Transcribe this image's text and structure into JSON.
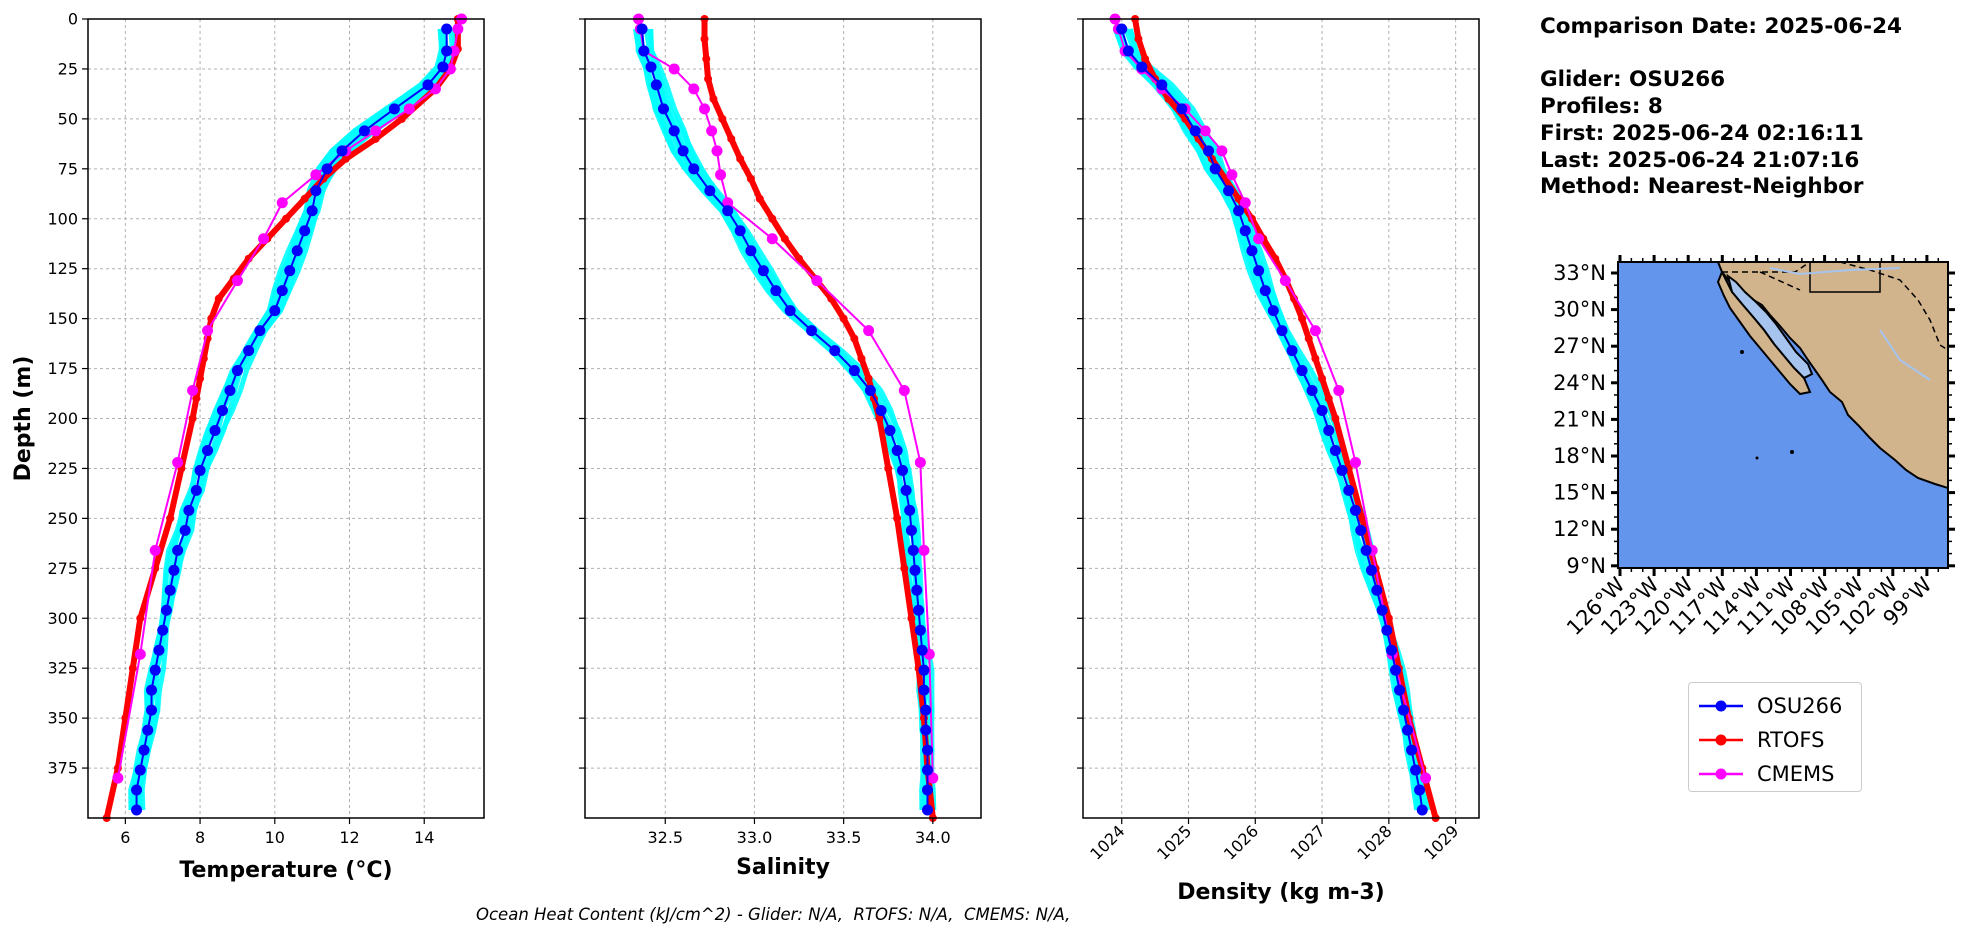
{
  "info": {
    "comparison_date": "Comparison Date: 2025-06-24",
    "glider": "Glider: OSU266",
    "profiles": "Profiles: 8",
    "first": "First: 2025-06-24 02:16:11",
    "last": "Last: 2025-06-24 21:07:16",
    "method": "Method: Nearest-Neighbor"
  },
  "footer": "Ocean Heat Content (kJ/cm^2) - Glider: N/A,  RTOFS: N/A,  CMEMS: N/A,",
  "legend": [
    {
      "name": "OSU266",
      "color": "#0000ff"
    },
    {
      "name": "RTOFS",
      "color": "#ff0000"
    },
    {
      "name": "CMEMS",
      "color": "#ff00ff"
    }
  ],
  "colors": {
    "glider_profiles": "#00ffff",
    "land": "#d2b48c",
    "ocean": "#6495ed",
    "water_bodies": "#a6c4ee"
  },
  "chart_data": [
    {
      "type": "line",
      "panel": "temperature",
      "xlabel": "Temperature (°C)",
      "ylabel": "Depth (m)",
      "xlim": [
        5.0,
        15.6
      ],
      "ylim": [
        400,
        0
      ],
      "y_inverted": true,
      "xticks": [
        "6",
        "8",
        "10",
        "12",
        "14"
      ],
      "yticks": [
        "0",
        "25",
        "50",
        "75",
        "100",
        "125",
        "150",
        "175",
        "200",
        "225",
        "250",
        "275",
        "300",
        "325",
        "350",
        "375"
      ],
      "grid": true,
      "series": [
        {
          "name": "OSU266",
          "depth": [
            5,
            16,
            24,
            33,
            45,
            56,
            66,
            75,
            86,
            96,
            106,
            116,
            126,
            136,
            146,
            156,
            166,
            176,
            186,
            196,
            206,
            216,
            226,
            236,
            246,
            256,
            266,
            276,
            286,
            296,
            306,
            316,
            326,
            336,
            346,
            356,
            366,
            376,
            386,
            396
          ],
          "x": [
            14.6,
            14.6,
            14.5,
            14.1,
            13.2,
            12.4,
            11.8,
            11.4,
            11.1,
            11.0,
            10.8,
            10.6,
            10.4,
            10.2,
            10.0,
            9.6,
            9.3,
            9.0,
            8.8,
            8.6,
            8.4,
            8.2,
            8.0,
            7.9,
            7.7,
            7.6,
            7.4,
            7.3,
            7.2,
            7.1,
            7.0,
            6.9,
            6.8,
            6.7,
            6.7,
            6.6,
            6.5,
            6.4,
            6.3,
            6.3
          ]
        },
        {
          "name": "RTOFS",
          "depth": [
            0,
            15,
            25,
            35,
            50,
            60,
            70,
            80,
            90,
            100,
            110,
            120,
            130,
            140,
            150,
            160,
            170,
            180,
            190,
            200,
            225,
            250,
            275,
            300,
            325,
            350,
            375,
            400
          ],
          "x": [
            14.9,
            14.9,
            14.7,
            14.3,
            13.4,
            12.7,
            11.9,
            11.3,
            10.8,
            10.3,
            9.8,
            9.3,
            8.9,
            8.5,
            8.3,
            8.2,
            8.1,
            8.0,
            7.9,
            7.8,
            7.5,
            7.2,
            6.8,
            6.4,
            6.2,
            6.0,
            5.8,
            5.5
          ]
        },
        {
          "name": "CMEMS",
          "depth": [
            0,
            5,
            16,
            25,
            35,
            45,
            56,
            66,
            78,
            92,
            110,
            131,
            156,
            186,
            222,
            266,
            318,
            380
          ],
          "x": [
            15.0,
            14.9,
            14.8,
            14.7,
            14.3,
            13.6,
            12.7,
            11.9,
            11.1,
            10.2,
            9.7,
            9.0,
            8.2,
            7.8,
            7.4,
            6.8,
            6.4,
            5.8
          ]
        }
      ]
    },
    {
      "type": "line",
      "panel": "salinity",
      "xlabel": "Salinity",
      "xlim": [
        32.05,
        34.27
      ],
      "ylim": [
        400,
        0
      ],
      "xticks": [
        "32.5",
        "33.0",
        "33.5",
        "34.0"
      ],
      "grid": true,
      "series": [
        {
          "name": "OSU266",
          "depth": [
            5,
            16,
            24,
            33,
            45,
            56,
            66,
            75,
            86,
            96,
            106,
            116,
            126,
            136,
            146,
            156,
            166,
            176,
            186,
            196,
            206,
            216,
            226,
            236,
            246,
            256,
            266,
            276,
            286,
            296,
            306,
            316,
            326,
            336,
            346,
            356,
            366,
            376,
            386,
            396
          ],
          "x": [
            32.37,
            32.38,
            32.42,
            32.45,
            32.49,
            32.55,
            32.6,
            32.66,
            32.75,
            32.85,
            32.92,
            32.98,
            33.05,
            33.12,
            33.2,
            33.32,
            33.45,
            33.56,
            33.65,
            33.71,
            33.76,
            33.8,
            33.83,
            33.85,
            33.87,
            33.88,
            33.89,
            33.9,
            33.91,
            33.92,
            33.93,
            33.94,
            33.95,
            33.95,
            33.96,
            33.96,
            33.97,
            33.97,
            33.97,
            33.97
          ]
        },
        {
          "name": "RTOFS",
          "depth": [
            0,
            10,
            20,
            30,
            40,
            50,
            60,
            70,
            80,
            90,
            100,
            110,
            120,
            130,
            140,
            150,
            160,
            170,
            180,
            190,
            200,
            225,
            250,
            275,
            300,
            325,
            350,
            375,
            400
          ],
          "x": [
            32.72,
            32.72,
            32.73,
            32.74,
            32.77,
            32.82,
            32.87,
            32.92,
            32.98,
            33.03,
            33.1,
            33.17,
            33.25,
            33.34,
            33.43,
            33.5,
            33.56,
            33.6,
            33.64,
            33.67,
            33.7,
            33.75,
            33.8,
            33.84,
            33.88,
            33.92,
            33.95,
            33.97,
            34.0
          ]
        },
        {
          "name": "CMEMS",
          "depth": [
            0,
            5,
            16,
            25,
            35,
            45,
            56,
            66,
            78,
            92,
            110,
            131,
            156,
            186,
            222,
            266,
            318,
            380
          ],
          "x": [
            32.35,
            32.36,
            32.38,
            32.55,
            32.66,
            32.72,
            32.76,
            32.79,
            32.81,
            32.85,
            33.1,
            33.35,
            33.64,
            33.84,
            33.93,
            33.95,
            33.98,
            34.0
          ]
        }
      ]
    },
    {
      "type": "line",
      "panel": "density",
      "xlabel": "Density (kg m-3)",
      "xlim": [
        1023.42,
        1029.35
      ],
      "ylim": [
        400,
        0
      ],
      "xticks": [
        "1024",
        "1025",
        "1026",
        "1027",
        "1028",
        "1029"
      ],
      "grid": true,
      "series": [
        {
          "name": "OSU266",
          "depth": [
            5,
            16,
            24,
            33,
            45,
            56,
            66,
            75,
            86,
            96,
            106,
            116,
            126,
            136,
            146,
            156,
            166,
            176,
            186,
            196,
            206,
            216,
            226,
            236,
            246,
            256,
            266,
            276,
            286,
            296,
            306,
            316,
            326,
            336,
            346,
            356,
            366,
            376,
            386,
            396
          ],
          "x": [
            1024.0,
            1024.1,
            1024.3,
            1024.6,
            1024.9,
            1025.1,
            1025.3,
            1025.4,
            1025.6,
            1025.75,
            1025.85,
            1025.95,
            1026.05,
            1026.15,
            1026.27,
            1026.4,
            1026.55,
            1026.7,
            1026.85,
            1027.0,
            1027.1,
            1027.2,
            1027.3,
            1027.4,
            1027.5,
            1027.58,
            1027.66,
            1027.74,
            1027.82,
            1027.9,
            1027.97,
            1028.04,
            1028.1,
            1028.16,
            1028.22,
            1028.28,
            1028.34,
            1028.4,
            1028.46,
            1028.5
          ]
        },
        {
          "name": "RTOFS",
          "depth": [
            0,
            10,
            20,
            30,
            40,
            50,
            60,
            70,
            80,
            90,
            100,
            110,
            120,
            130,
            140,
            150,
            160,
            170,
            180,
            190,
            200,
            225,
            250,
            275,
            300,
            325,
            350,
            375,
            400
          ],
          "x": [
            1024.2,
            1024.25,
            1024.35,
            1024.5,
            1024.7,
            1024.95,
            1025.15,
            1025.35,
            1025.55,
            1025.75,
            1025.95,
            1026.12,
            1026.3,
            1026.45,
            1026.58,
            1026.7,
            1026.8,
            1026.9,
            1027.0,
            1027.1,
            1027.2,
            1027.4,
            1027.6,
            1027.8,
            1028.0,
            1028.15,
            1028.3,
            1028.5,
            1028.7
          ]
        },
        {
          "name": "CMEMS",
          "depth": [
            0,
            5,
            16,
            25,
            35,
            45,
            56,
            66,
            78,
            92,
            110,
            131,
            156,
            186,
            222,
            266,
            318,
            380
          ],
          "x": [
            1023.9,
            1023.95,
            1024.05,
            1024.3,
            1024.6,
            1024.95,
            1025.25,
            1025.5,
            1025.65,
            1025.85,
            1026.05,
            1026.45,
            1026.9,
            1027.25,
            1027.5,
            1027.75,
            1028.05,
            1028.55
          ]
        }
      ]
    },
    {
      "type": "map",
      "panel": "map",
      "lat_ticks": [
        "33°N",
        "30°N",
        "27°N",
        "24°N",
        "21°N",
        "18°N",
        "15°N",
        "12°N",
        "9°N"
      ],
      "lon_ticks": [
        "126°W",
        "123°W",
        "120°W",
        "117°W",
        "114°W",
        "111°W",
        "108°W",
        "105°W",
        "102°W",
        "99°W"
      ]
    }
  ]
}
